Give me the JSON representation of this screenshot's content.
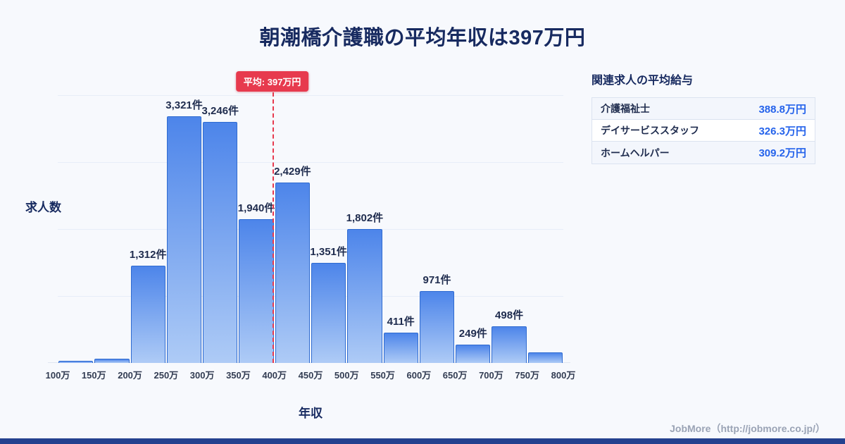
{
  "title": "朝潮橋介護職の平均年収は397万円",
  "chart_data": {
    "type": "bar",
    "title": "朝潮橋介護職の平均年収は397万円",
    "xlabel": "年収",
    "ylabel": "求人数",
    "x_tick_labels": [
      "100万",
      "150万",
      "200万",
      "250万",
      "300万",
      "350万",
      "400万",
      "450万",
      "500万",
      "550万",
      "600万",
      "650万",
      "700万",
      "750万",
      "800万"
    ],
    "bin_start": 100,
    "bin_width": 50,
    "values": [
      30,
      60,
      1312,
      3321,
      3246,
      1940,
      2429,
      1351,
      1802,
      411,
      971,
      249,
      498,
      140
    ],
    "bar_labels": [
      "",
      "",
      "1,312件",
      "3,321件",
      "3,246件",
      "1,940件",
      "2,429件",
      "1,351件",
      "1,802件",
      "411件",
      "971件",
      "249件",
      "498件",
      ""
    ],
    "ylim": [
      0,
      3600
    ],
    "grid": true,
    "average_line": {
      "x_value": 397,
      "label": "平均: 397万円"
    }
  },
  "side_panel": {
    "heading": "関連求人の平均給与",
    "rows": [
      {
        "label": "介護福祉士",
        "value": "388.8万円"
      },
      {
        "label": "デイサービススタッフ",
        "value": "326.3万円"
      },
      {
        "label": "ホームヘルパー",
        "value": "309.2万円"
      }
    ]
  },
  "footer": {
    "credit": "JobMore（http://jobmore.co.jp/）"
  },
  "colors": {
    "background": "#f7f9fd",
    "title_navy": "#172a60",
    "bar_gradient_top": "#4d85ea",
    "bar_gradient_bottom": "#aecbf6",
    "bar_border": "#2f6bd0",
    "average_red": "#e73a4e",
    "value_blue": "#2563eb",
    "bottom_strip": "#24418f"
  }
}
